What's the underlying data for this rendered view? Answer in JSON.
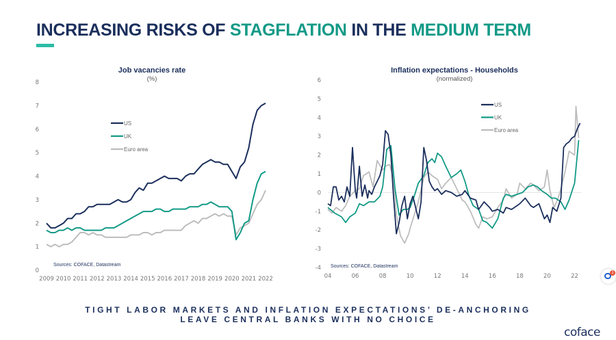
{
  "header": {
    "title_parts": [
      {
        "text": "INCREASING RISKS OF ",
        "accent": false
      },
      {
        "text": "STAGFLATION",
        "accent": true
      },
      {
        "text": " IN THE ",
        "accent": false
      },
      {
        "text": "MEDIUM TERM",
        "accent": true
      }
    ]
  },
  "colors": {
    "navy": "#1b2f5c",
    "teal": "#139a87",
    "grey": "#bdbdbd",
    "accent_bar": "#2dbba6"
  },
  "footer": {
    "line1": "TIGHT LABOR MARKETS AND INFLATION EXPECTATIONS’ DE-ANCHORING",
    "line2": "LEAVE CENTRAL BANKS WITH NO CHOICE"
  },
  "logo": "coface",
  "chat_widget": {
    "badge": "1"
  },
  "chart_data": [
    {
      "type": "line",
      "title": "Job vacancies rate",
      "subtitle": "(%)",
      "source": "Sources: COFACE, Datastream",
      "xlabel": "",
      "ylabel": "",
      "xlim": [
        2009,
        2022
      ],
      "ylim": [
        0,
        8
      ],
      "x_ticks": [
        "2009",
        "2010",
        "2011",
        "2012",
        "2013",
        "2014",
        "2015",
        "2016",
        "2017",
        "2018",
        "2019",
        "2020",
        "2021",
        "2022"
      ],
      "y_ticks": [
        "0",
        "1",
        "2",
        "3",
        "4",
        "5",
        "6",
        "7",
        "8"
      ],
      "legend": {
        "position": "upper-left",
        "entries": [
          "US",
          "UK",
          "Euro area"
        ]
      },
      "series": [
        {
          "name": "US",
          "color": "#1b2f5c",
          "x": [
            2009,
            2009.25,
            2009.5,
            2009.75,
            2010,
            2010.25,
            2010.5,
            2010.75,
            2011,
            2011.25,
            2011.5,
            2011.75,
            2012,
            2012.25,
            2012.5,
            2012.75,
            2013,
            2013.25,
            2013.5,
            2013.75,
            2014,
            2014.25,
            2014.5,
            2014.75,
            2015,
            2015.25,
            2015.5,
            2015.75,
            2016,
            2016.25,
            2016.5,
            2016.75,
            2017,
            2017.25,
            2017.5,
            2017.75,
            2018,
            2018.25,
            2018.5,
            2018.75,
            2019,
            2019.25,
            2019.5,
            2019.75,
            2020,
            2020.25,
            2020.5,
            2020.75,
            2021,
            2021.25,
            2021.5,
            2021.75,
            2022
          ],
          "values": [
            2.0,
            1.8,
            1.8,
            1.9,
            2.0,
            2.2,
            2.2,
            2.4,
            2.4,
            2.5,
            2.7,
            2.7,
            2.8,
            2.8,
            2.8,
            2.8,
            2.9,
            3.0,
            2.9,
            2.9,
            3.0,
            3.3,
            3.5,
            3.4,
            3.7,
            3.7,
            3.8,
            3.9,
            4.0,
            3.9,
            3.9,
            3.9,
            3.8,
            4.0,
            4.1,
            4.1,
            4.3,
            4.5,
            4.6,
            4.7,
            4.6,
            4.6,
            4.5,
            4.5,
            4.2,
            3.9,
            4.4,
            4.6,
            5.2,
            6.2,
            6.8,
            7.0,
            7.1
          ]
        },
        {
          "name": "UK",
          "color": "#139a87",
          "x": [
            2009,
            2009.25,
            2009.5,
            2009.75,
            2010,
            2010.25,
            2010.5,
            2010.75,
            2011,
            2011.25,
            2011.5,
            2011.75,
            2012,
            2012.25,
            2012.5,
            2012.75,
            2013,
            2013.25,
            2013.5,
            2013.75,
            2014,
            2014.25,
            2014.5,
            2014.75,
            2015,
            2015.25,
            2015.5,
            2015.75,
            2016,
            2016.25,
            2016.5,
            2016.75,
            2017,
            2017.25,
            2017.5,
            2017.75,
            2018,
            2018.25,
            2018.5,
            2018.75,
            2019,
            2019.25,
            2019.5,
            2019.75,
            2020,
            2020.25,
            2020.5,
            2020.75,
            2021,
            2021.25,
            2021.5,
            2021.75,
            2022
          ],
          "values": [
            1.7,
            1.6,
            1.6,
            1.7,
            1.7,
            1.8,
            1.7,
            1.8,
            1.8,
            1.7,
            1.7,
            1.7,
            1.7,
            1.7,
            1.8,
            1.8,
            1.8,
            1.9,
            2.0,
            2.1,
            2.2,
            2.3,
            2.4,
            2.5,
            2.5,
            2.5,
            2.6,
            2.6,
            2.5,
            2.5,
            2.6,
            2.6,
            2.6,
            2.6,
            2.7,
            2.7,
            2.7,
            2.8,
            2.8,
            2.9,
            2.8,
            2.7,
            2.7,
            2.7,
            2.5,
            1.3,
            1.6,
            2.0,
            2.1,
            3.0,
            3.7,
            4.1,
            4.2
          ]
        },
        {
          "name": "Euro area",
          "color": "#bdbdbd",
          "x": [
            2009,
            2009.25,
            2009.5,
            2009.75,
            2010,
            2010.25,
            2010.5,
            2010.75,
            2011,
            2011.25,
            2011.5,
            2011.75,
            2012,
            2012.25,
            2012.5,
            2012.75,
            2013,
            2013.25,
            2013.5,
            2013.75,
            2014,
            2014.25,
            2014.5,
            2014.75,
            2015,
            2015.25,
            2015.5,
            2015.75,
            2016,
            2016.25,
            2016.5,
            2016.75,
            2017,
            2017.25,
            2017.5,
            2017.75,
            2018,
            2018.25,
            2018.5,
            2018.75,
            2019,
            2019.25,
            2019.5,
            2019.75,
            2020,
            2020.25,
            2020.5,
            2020.75,
            2021,
            2021.25,
            2021.5,
            2021.75,
            2022
          ],
          "values": [
            1.1,
            1.0,
            1.1,
            1.0,
            1.1,
            1.1,
            1.2,
            1.4,
            1.6,
            1.6,
            1.5,
            1.6,
            1.5,
            1.5,
            1.4,
            1.4,
            1.4,
            1.4,
            1.4,
            1.4,
            1.5,
            1.5,
            1.5,
            1.6,
            1.6,
            1.5,
            1.6,
            1.6,
            1.7,
            1.7,
            1.7,
            1.7,
            1.7,
            1.9,
            2.0,
            2.1,
            2.0,
            2.2,
            2.2,
            2.3,
            2.4,
            2.3,
            2.4,
            2.3,
            2.3,
            1.5,
            1.8,
            1.9,
            2.0,
            2.4,
            2.8,
            3.0,
            3.4
          ]
        }
      ]
    },
    {
      "type": "line",
      "title": "Inflation expectations - Households",
      "subtitle": "(normalized)",
      "source": "Sources: COFACE, Datastream",
      "xlabel": "",
      "ylabel": "",
      "xlim": [
        2004,
        2022.5
      ],
      "ylim": [
        -4,
        6
      ],
      "x_ticks": [
        "04",
        "06",
        "08",
        "10",
        "12",
        "14",
        "16",
        "18",
        "20",
        "22"
      ],
      "y_ticks": [
        "-4",
        "-3",
        "-2",
        "-1",
        "0",
        "1",
        "2",
        "3",
        "4",
        "5",
        "6"
      ],
      "grid": "zero-line",
      "legend": {
        "position": "upper-right",
        "entries": [
          "US",
          "UK",
          "Euro area"
        ]
      },
      "series": [
        {
          "name": "US",
          "color": "#1b2f5c",
          "x": [
            2004,
            2004.2,
            2004.4,
            2004.6,
            2004.8,
            2005,
            2005.2,
            2005.4,
            2005.6,
            2005.8,
            2006,
            2006.1,
            2006.3,
            2006.5,
            2006.7,
            2006.9,
            2007,
            2007.2,
            2007.4,
            2007.6,
            2007.8,
            2008,
            2008.2,
            2008.4,
            2008.6,
            2008.8,
            2009,
            2009.2,
            2009.4,
            2009.6,
            2009.8,
            2010,
            2010.2,
            2010.4,
            2010.6,
            2010.8,
            2011,
            2011.2,
            2011.4,
            2011.6,
            2011.8,
            2012,
            2012.3,
            2012.6,
            2013,
            2013.4,
            2013.8,
            2014,
            2014.4,
            2014.8,
            2015,
            2015.4,
            2015.8,
            2016,
            2016.4,
            2016.8,
            2017,
            2017.4,
            2017.8,
            2018,
            2018.4,
            2018.8,
            2019,
            2019.4,
            2019.8,
            2020,
            2020.2,
            2020.4,
            2020.7,
            2021,
            2021.2,
            2021.4,
            2021.6,
            2021.8,
            2022,
            2022.2,
            2022.4
          ],
          "values": [
            -0.6,
            -0.7,
            0.3,
            0.3,
            -0.4,
            -0.2,
            -0.5,
            0.3,
            -0.2,
            2.4,
            0.1,
            -0.3,
            1.4,
            -0.2,
            0.4,
            -0.3,
            0.1,
            -0.1,
            0.3,
            0.6,
            0.9,
            1.5,
            3.3,
            3.1,
            2.0,
            -0.3,
            -2.2,
            -1.6,
            -0.7,
            -0.2,
            -1.4,
            -0.6,
            -0.2,
            -0.8,
            -1.4,
            -0.5,
            2.4,
            1.7,
            0.6,
            0.3,
            0.1,
            0.2,
            -0.1,
            0.1,
            0.0,
            -0.2,
            -0.1,
            0.1,
            -0.3,
            -0.4,
            -0.9,
            -0.5,
            -0.8,
            -1.0,
            -0.9,
            -1.1,
            -0.8,
            -0.9,
            -0.7,
            -0.6,
            -0.3,
            -0.7,
            -0.8,
            -0.6,
            -1.4,
            -1.2,
            -1.6,
            -0.8,
            -1.0,
            -0.3,
            2.4,
            2.6,
            2.7,
            2.9,
            3.0,
            3.4,
            3.7
          ]
        },
        {
          "name": "UK",
          "color": "#139a87",
          "x": [
            2004,
            2004.5,
            2005,
            2005.3,
            2005.6,
            2006,
            2006.3,
            2006.6,
            2007,
            2007.4,
            2007.8,
            2008,
            2008.3,
            2008.6,
            2008.9,
            2009.2,
            2009.5,
            2009.8,
            2010,
            2010.3,
            2010.6,
            2011,
            2011.3,
            2011.6,
            2011.8,
            2012,
            2012.3,
            2012.6,
            2013,
            2013.4,
            2013.7,
            2014,
            2014.3,
            2014.6,
            2015,
            2015.3,
            2015.6,
            2016,
            2016.4,
            2016.8,
            2017,
            2017.4,
            2017.8,
            2018.2,
            2018.6,
            2019,
            2019.3,
            2019.6,
            2020,
            2020.3,
            2020.6,
            2021,
            2021.3,
            2021.6,
            2022,
            2022.3
          ],
          "values": [
            -0.8,
            -1.1,
            -1.3,
            -1.6,
            -1.3,
            -1.1,
            -0.6,
            -0.7,
            -0.5,
            -0.5,
            -0.2,
            0.3,
            2.3,
            2.5,
            0.2,
            -1.2,
            -0.9,
            -0.9,
            -0.8,
            -0.2,
            0.5,
            0.9,
            1.6,
            1.8,
            1.6,
            2.1,
            1.9,
            1.4,
            0.8,
            1.0,
            1.2,
            0.6,
            -0.2,
            -0.7,
            -0.9,
            -1.5,
            -1.6,
            -1.9,
            -1.4,
            -0.3,
            -0.1,
            -0.2,
            -0.1,
            0.0,
            0.3,
            0.4,
            0.3,
            0.1,
            -0.1,
            -0.3,
            -0.3,
            -0.5,
            -0.9,
            -0.4,
            0.5,
            2.8
          ]
        },
        {
          "name": "Euro area",
          "color": "#bdbdbd",
          "x": [
            2004,
            2004.3,
            2004.6,
            2005,
            2005.3,
            2005.6,
            2006,
            2006.3,
            2006.6,
            2007,
            2007.3,
            2007.6,
            2008,
            2008.2,
            2008.5,
            2008.8,
            2009,
            2009.3,
            2009.6,
            2009.9,
            2010,
            2010.3,
            2010.6,
            2011,
            2011.3,
            2011.6,
            2012,
            2012.3,
            2012.6,
            2013,
            2013.4,
            2013.8,
            2014,
            2014.4,
            2014.8,
            2015,
            2015.3,
            2015.6,
            2016,
            2016.4,
            2016.8,
            2017,
            2017.4,
            2017.8,
            2018,
            2018.4,
            2018.8,
            2019,
            2019.4,
            2019.8,
            2020,
            2020.2,
            2020.5,
            2020.8,
            2021,
            2021.3,
            2021.6,
            2022,
            2022.1,
            2022.3
          ],
          "values": [
            -0.9,
            -1.1,
            -0.8,
            -1.0,
            -0.7,
            -0.2,
            0.1,
            0.2,
            0.9,
            1.1,
            0.3,
            1.7,
            1.2,
            1.4,
            1.5,
            0.7,
            -1.2,
            -2.3,
            -2.7,
            -2.2,
            -1.9,
            -1.2,
            -0.5,
            0.8,
            1.1,
            0.9,
            0.7,
            0.2,
            0.5,
            0.8,
            0.2,
            -0.4,
            -0.5,
            -1.0,
            -1.7,
            -1.9,
            -1.3,
            -1.4,
            -1.3,
            -0.8,
            -0.4,
            0.2,
            -0.3,
            -0.1,
            0.5,
            0.2,
            0.5,
            0.4,
            0.1,
            0.3,
            1.2,
            0.1,
            -0.8,
            -0.3,
            0.2,
            1.1,
            2.2,
            2.0,
            4.6,
            2.9
          ]
        }
      ]
    }
  ]
}
